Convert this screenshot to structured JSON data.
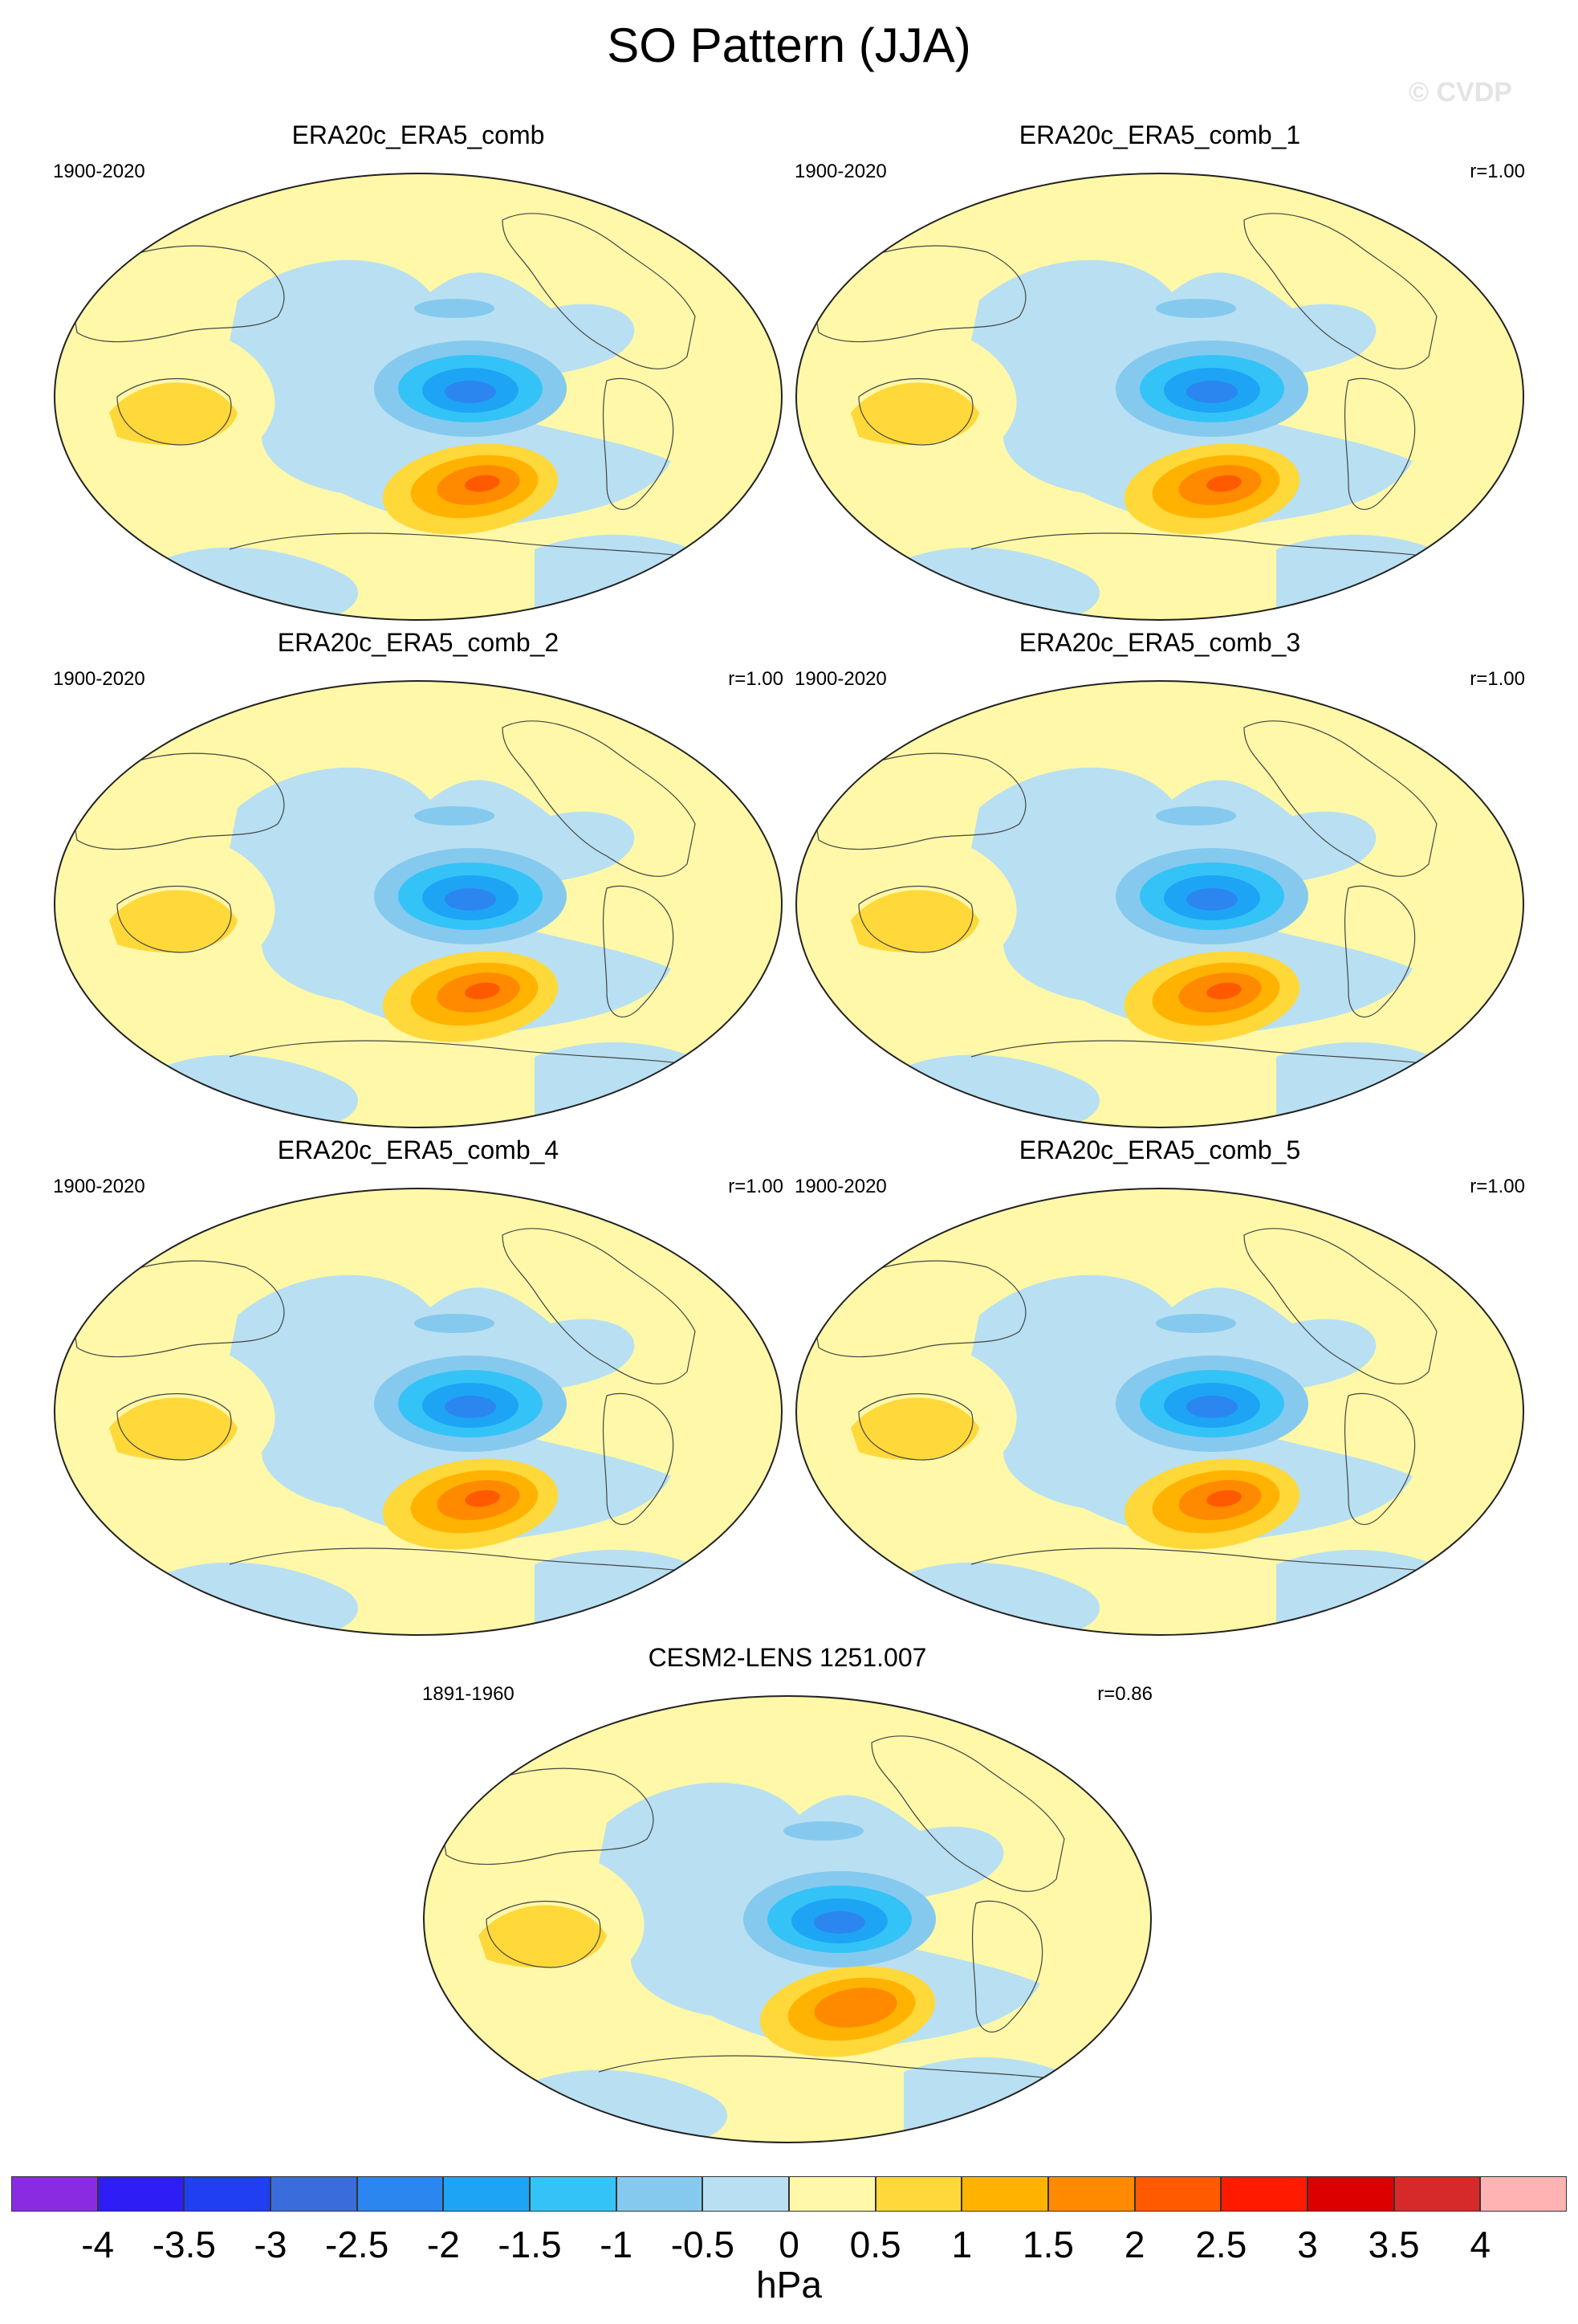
{
  "title": "SO Pattern (JJA)",
  "watermark": "© CVDP",
  "panels": [
    {
      "title": "ERA20c_ERA5_comb",
      "period": "1900-2020",
      "corr": ""
    },
    {
      "title": "ERA20c_ERA5_comb_1",
      "period": "1900-2020",
      "corr": "r=1.00"
    },
    {
      "title": "ERA20c_ERA5_comb_2",
      "period": "1900-2020",
      "corr": "r=1.00"
    },
    {
      "title": "ERA20c_ERA5_comb_3",
      "period": "1900-2020",
      "corr": "r=1.00"
    },
    {
      "title": "ERA20c_ERA5_comb_4",
      "period": "1900-2020",
      "corr": "r=1.00"
    },
    {
      "title": "ERA20c_ERA5_comb_5",
      "period": "1900-2020",
      "corr": "r=1.00"
    },
    {
      "title": "CESM2-LENS 1251.007",
      "period": "1891-1960",
      "corr": "r=0.86"
    }
  ],
  "colorbar": {
    "colors": [
      "#8a2be2",
      "#2e1ef5",
      "#1f3ff0",
      "#3a6ddb",
      "#2b86f0",
      "#1ea4f5",
      "#34c3f7",
      "#86c9ee",
      "#b8e0f2",
      "#fff8a8",
      "#ffd83a",
      "#ffb300",
      "#ff8a00",
      "#ff5a00",
      "#ff1a00",
      "#dd0000",
      "#d62a2a",
      "#ffb3b3"
    ],
    "labels": [
      "-4",
      "-3.5",
      "-3",
      "-2.5",
      "-2",
      "-1.5",
      "-1",
      "-0.5",
      "0",
      "0.5",
      "1",
      "1.5",
      "2",
      "2.5",
      "3",
      "3.5",
      "4"
    ],
    "units": "hPa"
  },
  "field_colors": {
    "background": "#fff8a8",
    "neg_weak": "#b8e0f2",
    "neg_mid": "#86c9ee",
    "neg_strong": "#34c3f7",
    "neg_core": "#1ea4f5",
    "neg_peak": "#2b86f0",
    "pos_weak": "#ffd83a",
    "pos_mid": "#ffb300",
    "pos_strong": "#ff8a00",
    "pos_core": "#ff5a00",
    "pos_peak": "#ff1a00"
  }
}
